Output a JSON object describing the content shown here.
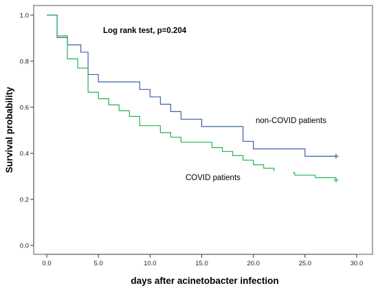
{
  "chart_data": {
    "type": "line",
    "subtype": "kaplan-meier step curve",
    "title": "",
    "xlabel": "days after acinetobacter infection",
    "ylabel": "Survival  probability",
    "xlim": [
      0,
      30
    ],
    "ylim": [
      0,
      1
    ],
    "x_ticks": [
      "0.0",
      "5.0",
      "10.0",
      "15.0",
      "20.0",
      "25.0",
      "30.0"
    ],
    "y_ticks": [
      "0.0",
      "0.2",
      "0.4",
      "0.6",
      "0.8",
      "1.0"
    ],
    "x_tick_values": [
      0,
      5,
      10,
      15,
      20,
      25,
      30
    ],
    "y_tick_values": [
      0,
      0.2,
      0.4,
      0.6,
      0.8,
      1.0
    ],
    "grid": false,
    "legend": "none",
    "series": [
      {
        "name": "non-COVID patients",
        "color": "#3d5ea8",
        "censor_marker": "+",
        "censor_x": 28,
        "points": [
          {
            "x": 0,
            "y": 1.0
          },
          {
            "x": 1,
            "y": 0.903
          },
          {
            "x": 2,
            "y": 0.871
          },
          {
            "x": 3.3,
            "y": 0.839
          },
          {
            "x": 4,
            "y": 0.742
          },
          {
            "x": 5,
            "y": 0.71
          },
          {
            "x": 9,
            "y": 0.677
          },
          {
            "x": 10,
            "y": 0.645
          },
          {
            "x": 11,
            "y": 0.613
          },
          {
            "x": 12,
            "y": 0.581
          },
          {
            "x": 13,
            "y": 0.548
          },
          {
            "x": 15,
            "y": 0.516
          },
          {
            "x": 19,
            "y": 0.452
          },
          {
            "x": 20,
            "y": 0.419
          },
          {
            "x": 25,
            "y": 0.387
          },
          {
            "x": 28,
            "y": 0.387
          }
        ]
      },
      {
        "name": "COVID patients",
        "color": "#22b254",
        "censor_marker": "+",
        "censor_x": 28,
        "points": [
          {
            "x": 0,
            "y": 1.0
          },
          {
            "x": 1,
            "y": 0.91
          },
          {
            "x": 2,
            "y": 0.81
          },
          {
            "x": 3,
            "y": 0.77
          },
          {
            "x": 4,
            "y": 0.665
          },
          {
            "x": 5,
            "y": 0.637
          },
          {
            "x": 6,
            "y": 0.61
          },
          {
            "x": 7,
            "y": 0.585
          },
          {
            "x": 8,
            "y": 0.56
          },
          {
            "x": 9,
            "y": 0.52
          },
          {
            "x": 11,
            "y": 0.49
          },
          {
            "x": 12,
            "y": 0.47
          },
          {
            "x": 13,
            "y": 0.448
          },
          {
            "x": 16,
            "y": 0.425
          },
          {
            "x": 17,
            "y": 0.408
          },
          {
            "x": 18,
            "y": 0.39
          },
          {
            "x": 19,
            "y": 0.37
          },
          {
            "x": 20,
            "y": 0.35
          },
          {
            "x": 21,
            "y": 0.335
          },
          {
            "x": 22,
            "y": 0.316
          },
          {
            "x": 24,
            "y": 0.305
          },
          {
            "x": 26,
            "y": 0.294
          },
          {
            "x": 28,
            "y": 0.284
          }
        ]
      }
    ],
    "annotations": [
      {
        "id": "logrank",
        "text": "Log rank test, p=0.204",
        "bold": true
      },
      {
        "id": "noncovid",
        "text": "non-COVID patients",
        "bold": false
      },
      {
        "id": "covid",
        "text": "COVID patients",
        "bold": false
      }
    ]
  },
  "colors": {
    "axis": "#333333",
    "frame": "#555555",
    "background": "#ffffff"
  }
}
